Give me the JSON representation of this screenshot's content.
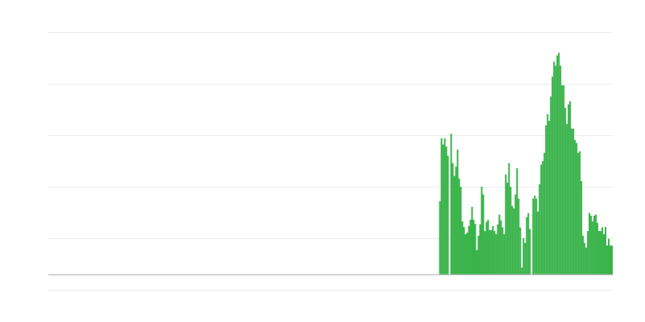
{
  "chart_data": {
    "type": "bar",
    "title": "",
    "xlabel": "",
    "ylabel": "",
    "ylim": [
      -0.3,
      4.7
    ],
    "gridlines": [
      -0.3,
      0.7,
      1.7,
      2.7,
      3.7,
      4.7
    ],
    "grid": true,
    "bar_color": "#39b34a",
    "grid_color": "#ebebeb",
    "axis_color": "#a8a8a8",
    "values": [
      0,
      0,
      0,
      0,
      0,
      0,
      0,
      0,
      0,
      0,
      0,
      0,
      0,
      0,
      0,
      0,
      0,
      0,
      0,
      0,
      0,
      0,
      0,
      0,
      0,
      0,
      0,
      0,
      0,
      0,
      0,
      0,
      0,
      0,
      0,
      0,
      0,
      0,
      0,
      0,
      0,
      0,
      0,
      0,
      0,
      0,
      0,
      0,
      0,
      0,
      0,
      0,
      0,
      0,
      0,
      0,
      0,
      0,
      0,
      0,
      0,
      0,
      0,
      0,
      0,
      0,
      0,
      0,
      0,
      0,
      0,
      0,
      0,
      0,
      0,
      0,
      0,
      0,
      0,
      0,
      0,
      0,
      0,
      0,
      0,
      0,
      0,
      0,
      0,
      0,
      0,
      0,
      0,
      0,
      0,
      0,
      0,
      0,
      0,
      0,
      0,
      0,
      0,
      0,
      0,
      0,
      0,
      0,
      0,
      0,
      0,
      0,
      0,
      0,
      0,
      0,
      0,
      0,
      0,
      0,
      0,
      0,
      0,
      0,
      0,
      0,
      0,
      0,
      0,
      0,
      0,
      0,
      0,
      0,
      0,
      0,
      0,
      0,
      0,
      0,
      0,
      0,
      0,
      0,
      0,
      0,
      0,
      0,
      0,
      0,
      0,
      0,
      0,
      0,
      0,
      0,
      0,
      0,
      0,
      0,
      0,
      0,
      0,
      0,
      0,
      0,
      0,
      0,
      0,
      0,
      0,
      0,
      0,
      0,
      0,
      0,
      0,
      0,
      0,
      0,
      0,
      0,
      0,
      0,
      0,
      0,
      0,
      0,
      0,
      0,
      0,
      0,
      0,
      0,
      0,
      0,
      0,
      0,
      0,
      0,
      0,
      0,
      0,
      0,
      0,
      0,
      0,
      0,
      0,
      0,
      0,
      0,
      0,
      0,
      0,
      0,
      0,
      0,
      0,
      0,
      0,
      0,
      0,
      0,
      0,
      0,
      0,
      0,
      0,
      0,
      0,
      0,
      0,
      0,
      0,
      0,
      0,
      0,
      0,
      0,
      0,
      0,
      0,
      1.42,
      2.64,
      2.52,
      2.64,
      2.48,
      2.3,
      0,
      2.73,
      2.16,
      1.91,
      2.09,
      2.42,
      1.86,
      1.7,
      1.03,
      0.92,
      0.78,
      0.81,
      0.94,
      1.06,
      1.31,
      1.06,
      0.98,
      0.47,
      0.75,
      0.97,
      1.7,
      1.55,
      0.84,
      1.02,
      1.06,
      0.86,
      0.86,
      0.94,
      0.84,
      0.78,
      0.97,
      1.16,
      1.05,
      0.91,
      0.78,
      1.94,
      1.78,
      2.16,
      1.7,
      1.33,
      1.28,
      1.55,
      2.06,
      1.47,
      0.91,
      0.13,
      0.7,
      0.61,
      1.11,
      1.19,
      0.88,
      0,
      1.47,
      1.53,
      1.47,
      1.22,
      1.75,
      2.13,
      2.2,
      2.36,
      2.89,
      3.11,
      2.98,
      3.45,
      3.84,
      4.13,
      4.05,
      4.25,
      4.3,
      4.05,
      3.67,
      3.67,
      3.23,
      2.92,
      3.3,
      3.36,
      2.83,
      2.83,
      2.61,
      2.55,
      2.36,
      2.39,
      1.81,
      0.75,
      0.61,
      0.52,
      0.84,
      1.19,
      1.14,
      1.03,
      1.14,
      1.16,
      1.0,
      0.84,
      0.84,
      0.91,
      0.78,
      0.92,
      0.56,
      0.69,
      0.56,
      0.56
    ]
  }
}
